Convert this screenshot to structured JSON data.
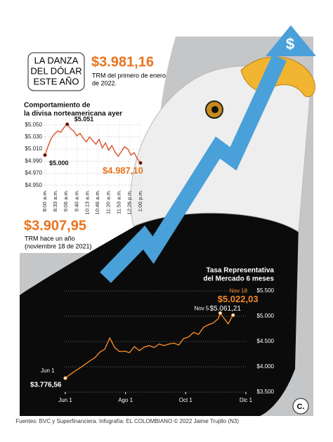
{
  "infographic": {
    "headline": [
      "LA DANZA",
      "DEL DÓLAR",
      "ESTE AÑO"
    ],
    "stat_year_start": {
      "value": "$3.981,16",
      "caption": [
        "TRM del primero de enero",
        "de 2022."
      ]
    },
    "stat_year_ago": {
      "value": "$3.907,95",
      "caption": [
        "TRM hace un año",
        "(noviembre 18 de 2021)"
      ]
    },
    "arrow_icon": "$",
    "logo": "C.",
    "source": "Fuentes: BVC y Superfinanciera. Infografía: EL COLOMBIANO © 2022  Jaime Trujillo (N3)"
  },
  "chart_data": [
    {
      "type": "line",
      "title": [
        "Comportamiento de",
        "la divisa norteamericana ayer"
      ],
      "x": [
        480,
        490,
        500,
        510,
        520,
        530,
        540,
        550,
        560,
        570,
        580,
        590,
        600,
        610,
        620,
        630,
        640,
        650,
        660,
        670,
        680,
        690,
        700,
        710,
        720,
        730,
        740,
        750,
        760,
        770,
        780
      ],
      "values": [
        5000,
        5015,
        5028,
        5035,
        5040,
        5038,
        5046,
        5051,
        5044,
        5040,
        5032,
        5036,
        5028,
        5022,
        5030,
        5024,
        5018,
        5026,
        5012,
        5020,
        5008,
        5016,
        5005,
        4998,
        5006,
        5014,
        5010,
        5000,
        5004,
        4994,
        4987.1
      ],
      "value_labels": [
        "$5.000",
        null,
        null,
        null,
        null,
        null,
        null,
        "$5.051",
        null,
        null,
        null,
        null,
        null,
        null,
        null,
        null,
        null,
        null,
        null,
        null,
        null,
        null,
        null,
        null,
        null,
        null,
        null,
        null,
        null,
        null,
        "$4.987,10"
      ],
      "color": "#d9502b",
      "xlim": [
        480,
        780
      ],
      "xticks": [
        {
          "value": 480,
          "label": "8:00 a.m."
        },
        {
          "value": 513,
          "label": "8:33 a.m."
        },
        {
          "value": 546,
          "label": "9:06 a.m."
        },
        {
          "value": 580,
          "label": "9:40 a.m."
        },
        {
          "value": 613,
          "label": "10:13 a.m."
        },
        {
          "value": 646,
          "label": "10:46 a.m."
        },
        {
          "value": 680,
          "label": "11:20 a.m."
        },
        {
          "value": 713,
          "label": "11:53 a.m."
        },
        {
          "value": 746,
          "label": "12:26 p.m."
        },
        {
          "value": 780,
          "label": "1:00 p.m."
        }
      ],
      "ylim": [
        4945,
        5059
      ],
      "yticks": [
        {
          "value": 5050,
          "label": "$5.050"
        },
        {
          "value": 5030,
          "label": "$5.030"
        },
        {
          "value": 5010,
          "label": "$5.010"
        },
        {
          "value": 4990,
          "label": "$4.990"
        },
        {
          "value": 4970,
          "label": "$4.970"
        },
        {
          "value": 4950,
          "label": "$4.950"
        }
      ],
      "grid": true
    },
    {
      "type": "line",
      "title": [
        "Tasa Representativa",
        "del Mercado 6 meses"
      ],
      "x": [
        0,
        5,
        10,
        15,
        20,
        25,
        30,
        35,
        40,
        45,
        50,
        55,
        60,
        65,
        70,
        75,
        80,
        85,
        90,
        95,
        100,
        105,
        110,
        115,
        120,
        125,
        130,
        135,
        140,
        145,
        150,
        155,
        157,
        160,
        165,
        170
      ],
      "values": [
        3776.56,
        3850,
        3920,
        3980,
        4050,
        4120,
        4180,
        4290,
        4350,
        4570,
        4380,
        4300,
        4310,
        4280,
        4400,
        4320,
        4390,
        4420,
        4380,
        4450,
        4420,
        4450,
        4470,
        4430,
        4560,
        4590,
        4680,
        4640,
        4780,
        4830,
        4870,
        4950,
        5061.21,
        4980,
        4850,
        5022.03
      ],
      "point_labels": [
        "Jun 1",
        null,
        null,
        null,
        null,
        null,
        null,
        null,
        null,
        null,
        null,
        null,
        null,
        null,
        null,
        null,
        null,
        null,
        null,
        null,
        null,
        null,
        null,
        null,
        null,
        null,
        null,
        null,
        null,
        null,
        null,
        null,
        "Nov 5",
        null,
        null,
        "Nov 18"
      ],
      "value_labels": [
        "$3.776,56",
        null,
        null,
        null,
        null,
        null,
        null,
        null,
        null,
        null,
        null,
        null,
        null,
        null,
        null,
        null,
        null,
        null,
        null,
        null,
        null,
        null,
        null,
        null,
        null,
        null,
        null,
        null,
        null,
        null,
        null,
        null,
        "$5.061,21",
        null,
        null,
        "$5.022,03"
      ],
      "color": "#f08a24",
      "xlim": [
        0,
        183
      ],
      "xticks": [
        {
          "value": 0,
          "label": "Jun 1"
        },
        {
          "value": 61,
          "label": "Ago 1"
        },
        {
          "value": 122,
          "label": "Oct 1"
        },
        {
          "value": 183,
          "label": "Dic 1"
        }
      ],
      "ylim": [
        3500,
        5500
      ],
      "yticks": [
        {
          "value": 5500,
          "label": "$5.500"
        },
        {
          "value": 5000,
          "label": "$5.000"
        },
        {
          "value": 4500,
          "label": "$4.500"
        },
        {
          "value": 4000,
          "label": "$4.000"
        },
        {
          "value": 3500,
          "label": "$3.500"
        }
      ],
      "grid": true
    }
  ]
}
